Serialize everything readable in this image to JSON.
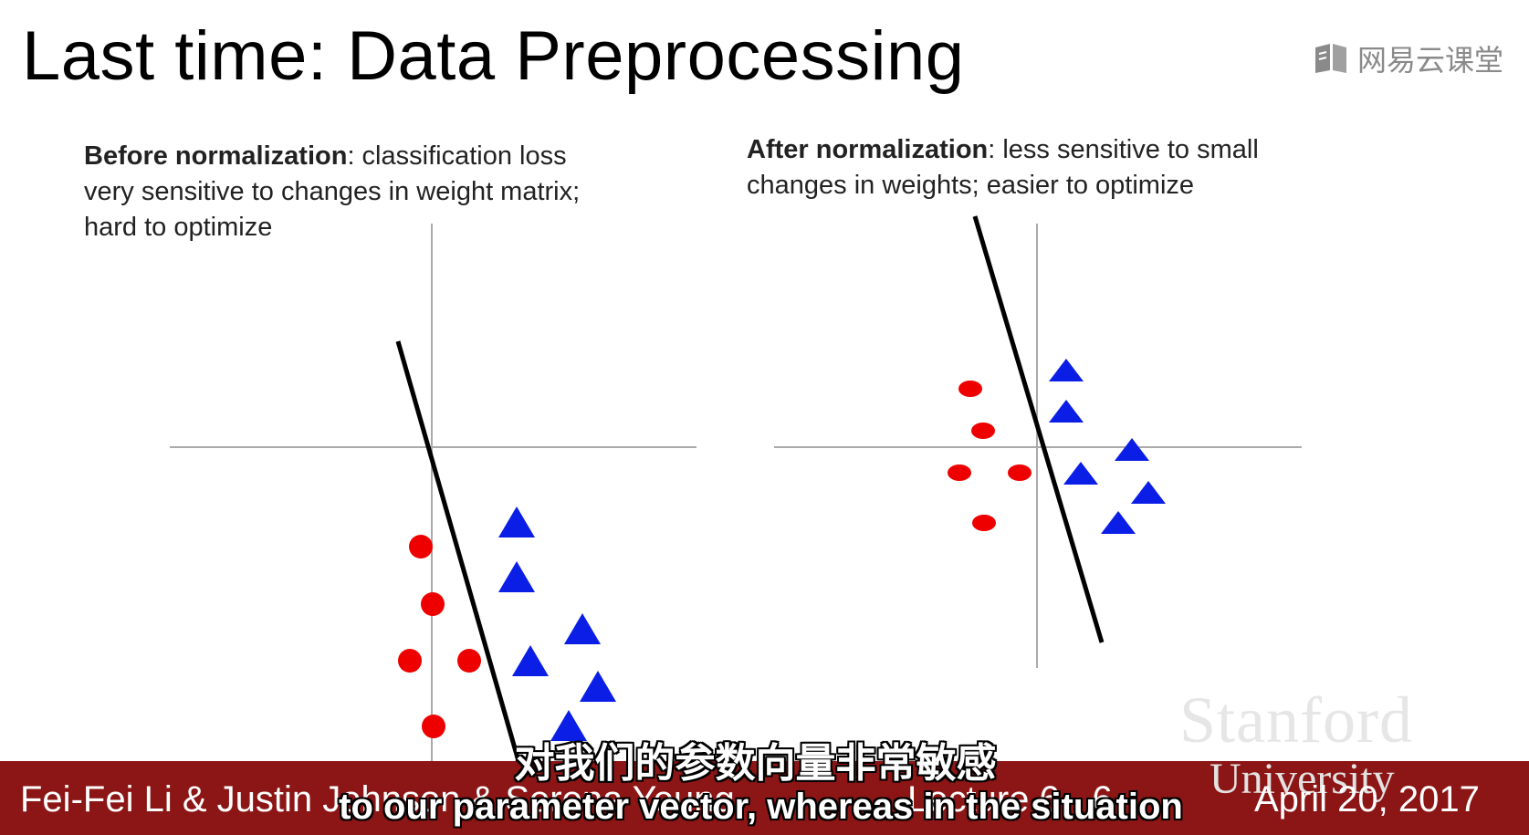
{
  "slide": {
    "title": "Last time: Data Preprocessing",
    "watermark": {
      "text": "网易云课堂",
      "icon": "netease-cloud-classroom-icon"
    },
    "left_caption": {
      "bold": "Before normalization",
      "line1": ": classification loss",
      "line2": "very sensitive to changes in weight matrix;",
      "line3": "hard to optimize"
    },
    "right_caption": {
      "bold": "After normalization",
      "line1": ": less sensitive to small",
      "line2": "changes in weights; easier to optimize"
    },
    "logo": {
      "line1": "Stanford",
      "line2": "University"
    },
    "footer": {
      "authors": "Fei-Fei Li & Justin Johnson & Serena Yeung",
      "lecture": "Lecture 6 -",
      "page": "6",
      "date": "April 20, 2017"
    },
    "subtitles": {
      "zh": "对我们的参数向量非常敏感",
      "en": "to our parameter vector, whereas in the situation"
    },
    "colors": {
      "class_a": "#ee0000",
      "class_b": "#0a1ee6",
      "axis": "#aaaaaa",
      "footer_bg": "#8c1515"
    }
  }
}
